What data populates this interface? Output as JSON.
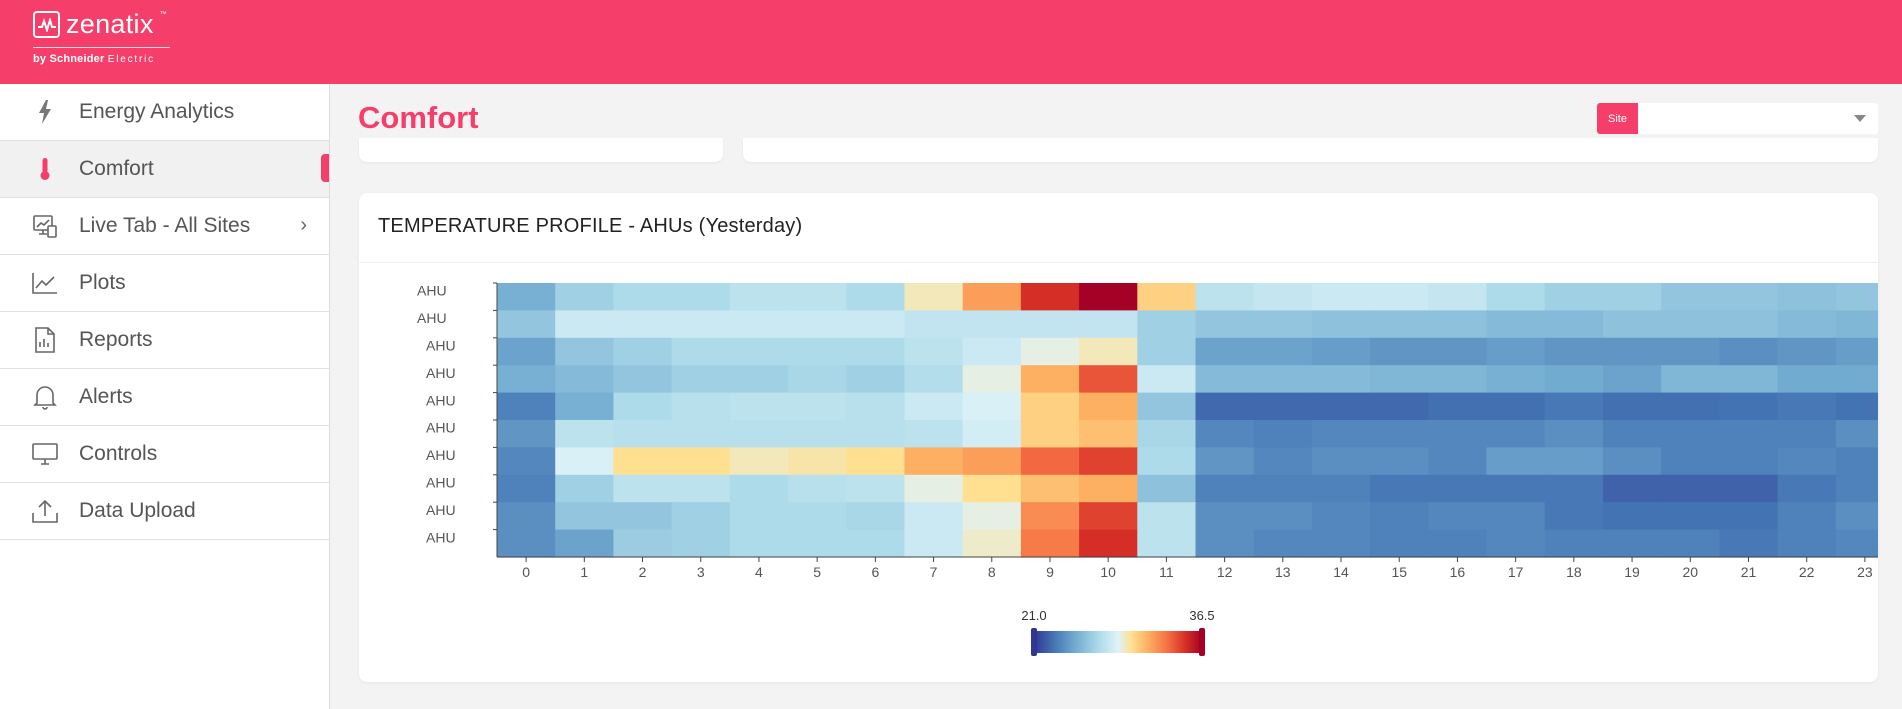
{
  "brand": {
    "name": "zenatix",
    "tm": "™",
    "by_prefix": "by Schneider",
    "by_suffix": "Electric",
    "accent": "#f53f6a"
  },
  "sidebar": {
    "items": [
      {
        "label": "Energy Analytics",
        "icon": "bolt-icon"
      },
      {
        "label": "Comfort",
        "icon": "thermometer-icon",
        "active": true
      },
      {
        "label": "Live Tab - All Sites",
        "icon": "monitor-chart-icon",
        "chevron": "›"
      },
      {
        "label": "Plots",
        "icon": "line-chart-icon"
      },
      {
        "label": "Reports",
        "icon": "report-icon"
      },
      {
        "label": "Alerts",
        "icon": "bell-icon"
      },
      {
        "label": "Controls",
        "icon": "desktop-icon"
      },
      {
        "label": "Data Upload",
        "icon": "upload-icon"
      }
    ]
  },
  "header": {
    "title": "Comfort"
  },
  "site_filter": {
    "label": "Site",
    "value": ""
  },
  "panel": {
    "title": "TEMPERATURE PROFILE - AHUs (Yesterday)"
  },
  "chart_data": {
    "type": "heatmap",
    "title": "TEMPERATURE PROFILE - AHUs (Yesterday)",
    "x": [
      0,
      1,
      2,
      3,
      4,
      5,
      6,
      7,
      8,
      9,
      10,
      11,
      12,
      13,
      14,
      15,
      16,
      17,
      18,
      19,
      20,
      21,
      22,
      23
    ],
    "y": [
      "AHU",
      "AHU",
      "AHU",
      "AHU",
      "AHU",
      "AHU",
      "AHU",
      "AHU",
      "AHU",
      "AHU"
    ],
    "colorbar": {
      "min": 21.0,
      "max": 36.5,
      "min_label": "21.0",
      "max_label": "36.5"
    },
    "values": [
      [
        25.0,
        26.5,
        27.0,
        27.0,
        27.5,
        27.5,
        27.0,
        29.5,
        32.0,
        35.0,
        36.5,
        30.5,
        27.5,
        27.8,
        28.0,
        28.0,
        27.8,
        27.0,
        26.5,
        26.5,
        26.0,
        26.0,
        25.8,
        26.0
      ],
      [
        26.0,
        28.0,
        28.0,
        28.0,
        28.0,
        28.0,
        28.0,
        27.7,
        27.7,
        27.7,
        27.7,
        26.5,
        26.0,
        26.0,
        25.8,
        25.8,
        25.8,
        25.5,
        25.5,
        25.8,
        25.8,
        25.8,
        25.5,
        25.3
      ],
      [
        24.5,
        26.0,
        26.5,
        27.0,
        27.0,
        27.0,
        27.0,
        27.5,
        28.0,
        29.0,
        29.5,
        26.5,
        24.5,
        24.5,
        24.3,
        24.0,
        24.0,
        24.3,
        24.0,
        24.0,
        24.0,
        23.8,
        24.0,
        24.3
      ],
      [
        25.0,
        25.5,
        26.0,
        26.5,
        26.5,
        26.8,
        26.5,
        27.2,
        29.0,
        31.5,
        34.0,
        28.0,
        25.5,
        25.5,
        25.5,
        25.3,
        25.3,
        25.0,
        24.8,
        24.5,
        25.3,
        25.3,
        24.8,
        24.8
      ],
      [
        23.3,
        25.0,
        27.0,
        27.3,
        27.5,
        27.5,
        27.3,
        28.0,
        28.5,
        30.5,
        31.5,
        26.0,
        22.5,
        22.5,
        22.5,
        22.5,
        22.7,
        22.7,
        23.0,
        22.7,
        22.7,
        22.8,
        23.0,
        22.8
      ],
      [
        24.0,
        27.5,
        27.3,
        27.3,
        27.3,
        27.3,
        27.3,
        27.5,
        28.3,
        30.5,
        31.0,
        26.8,
        23.5,
        23.3,
        23.5,
        23.5,
        23.5,
        23.5,
        23.8,
        23.3,
        23.3,
        23.3,
        23.3,
        23.8
      ],
      [
        23.5,
        28.5,
        30.0,
        30.0,
        29.5,
        29.7,
        30.0,
        31.5,
        32.0,
        33.5,
        34.5,
        27.0,
        24.0,
        23.5,
        23.8,
        23.8,
        23.5,
        24.3,
        24.3,
        23.8,
        23.3,
        23.3,
        23.5,
        23.3
      ],
      [
        23.3,
        26.5,
        27.5,
        27.5,
        27.0,
        27.3,
        27.5,
        29.0,
        30.0,
        31.0,
        31.5,
        25.8,
        23.3,
        23.3,
        23.3,
        23.0,
        23.0,
        23.0,
        23.0,
        22.3,
        22.3,
        22.3,
        23.0,
        23.3
      ],
      [
        23.8,
        26.0,
        26.0,
        26.5,
        27.0,
        27.0,
        26.8,
        28.0,
        29.0,
        32.5,
        34.5,
        27.5,
        23.8,
        23.8,
        23.5,
        23.3,
        23.5,
        23.5,
        23.0,
        22.8,
        22.8,
        22.8,
        23.3,
        23.8
      ],
      [
        23.8,
        24.5,
        26.3,
        26.5,
        27.0,
        27.0,
        27.0,
        28.0,
        29.3,
        33.0,
        35.0,
        27.5,
        23.8,
        23.5,
        23.5,
        23.3,
        23.3,
        23.5,
        23.3,
        23.3,
        23.3,
        23.0,
        23.3,
        23.5
      ]
    ]
  }
}
